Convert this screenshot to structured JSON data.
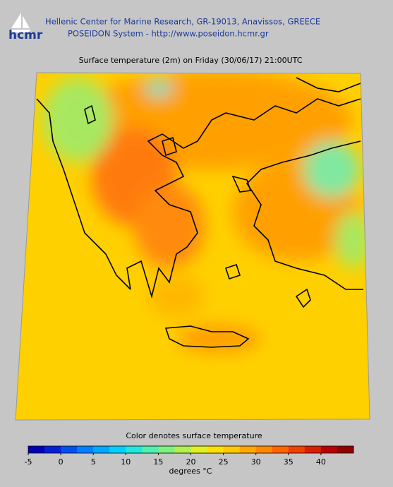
{
  "header": {
    "logo": "hcmr",
    "line1": "Hellenic Center for Marine Research, GR-19013, Anavissos, GREECE",
    "line2": "POSEIDON System - http://www.poseidon.hcmr.gr"
  },
  "map": {
    "title": "Surface temperature (2m) on Friday (30/06/17) 21:00UTC"
  },
  "colorbar": {
    "label": "Color denotes surface temperature",
    "unit": "degrees °C",
    "range": [
      -5,
      45
    ],
    "ticks": [
      -5,
      0,
      5,
      10,
      15,
      20,
      25,
      30,
      35,
      40
    ],
    "colors": [
      "#0000b4",
      "#0020d8",
      "#0050f0",
      "#0080ff",
      "#00a8ff",
      "#00d0ff",
      "#20e8e0",
      "#50f0b0",
      "#80f080",
      "#b0f050",
      "#e0f020",
      "#ffe000",
      "#ffc800",
      "#ffa800",
      "#ff8800",
      "#ff6400",
      "#f04000",
      "#d82000",
      "#b80000",
      "#900000"
    ]
  }
}
